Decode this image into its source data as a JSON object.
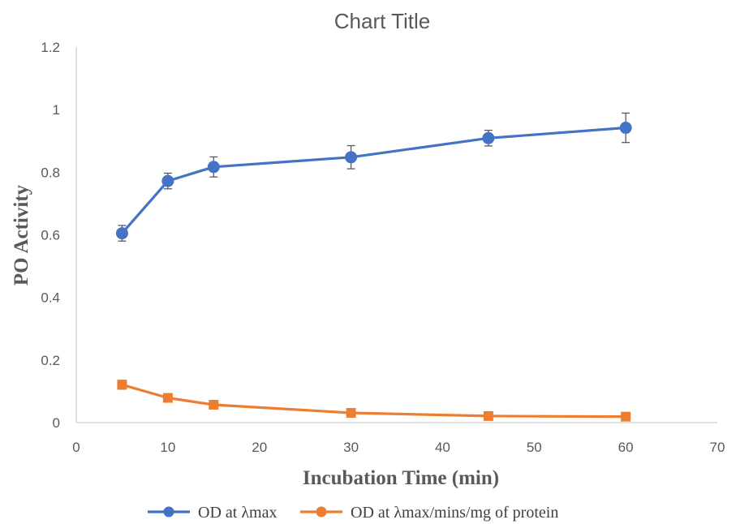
{
  "chart_data": {
    "type": "line",
    "title": "Chart Title",
    "xlabel": "Incubation Time (min)",
    "ylabel": "PO Activity",
    "xlim": [
      0,
      70
    ],
    "ylim": [
      0,
      1.2
    ],
    "x_ticks": [
      0,
      10,
      20,
      30,
      40,
      50,
      60,
      70
    ],
    "y_ticks": [
      0,
      0.2,
      0.4,
      0.6,
      0.8,
      1,
      1.2
    ],
    "y_tick_labels": [
      "0",
      "0.2",
      "0.4",
      "0.6",
      "0.8",
      "1",
      "1.2"
    ],
    "grid": false,
    "legend_position": "bottom",
    "x": [
      5,
      10,
      15,
      30,
      45,
      60
    ],
    "series": [
      {
        "name": "OD at λmax",
        "color": "#4472C4",
        "values": [
          0.605,
          0.772,
          0.817,
          0.848,
          0.909,
          0.942
        ],
        "errors": [
          0.025,
          0.025,
          0.032,
          0.037,
          0.025,
          0.047
        ]
      },
      {
        "name": "OD at λmax/mins/mg of protein",
        "color": "#ED7D31",
        "values": [
          0.121,
          0.079,
          0.057,
          0.031,
          0.021,
          0.019
        ],
        "errors": [
          0.014,
          0.013,
          0.013,
          0.012,
          0.011,
          0.011
        ]
      }
    ]
  }
}
